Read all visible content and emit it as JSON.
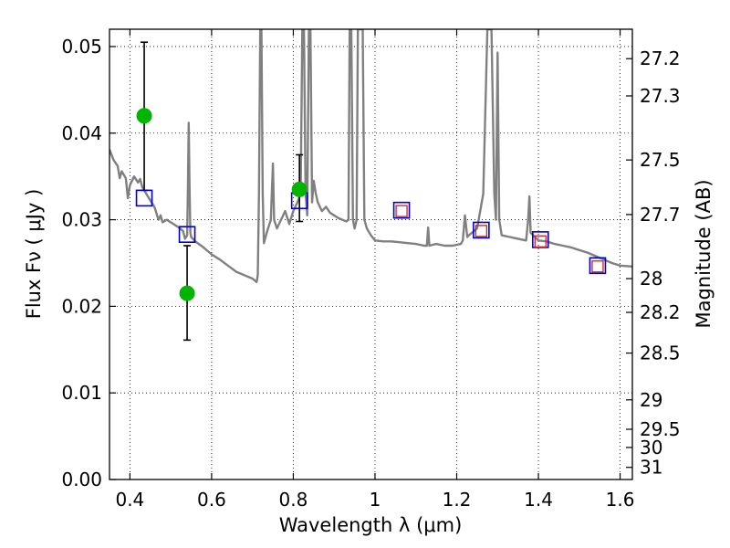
{
  "chart_data": {
    "type": "scatter",
    "xlabel": "Wavelength  λ (μm)",
    "ylabel": "Flux  Fν  ( μJy )",
    "y2label": "Magnitude (AB)",
    "xlim": [
      0.35,
      1.63
    ],
    "ylim": [
      0.0,
      0.052
    ],
    "grid": true,
    "x_ticks": [
      0.4,
      0.6,
      0.8,
      1.0,
      1.2,
      1.4,
      1.6
    ],
    "x_tick_labels": [
      "0.4",
      "0.6",
      "0.8",
      "1",
      "1.2",
      "1.4",
      "1.6"
    ],
    "y_ticks": [
      0.0,
      0.01,
      0.02,
      0.03,
      0.04,
      0.05
    ],
    "y_tick_labels": [
      "0.00",
      "0.01",
      "0.02",
      "0.03",
      "0.04",
      "0.05"
    ],
    "y2_ticks": [
      {
        "label": "27.2",
        "flux": 0.0486
      },
      {
        "label": "27.3",
        "flux": 0.0443
      },
      {
        "label": "27.5",
        "flux": 0.0369
      },
      {
        "label": "27.7",
        "flux": 0.0306
      },
      {
        "label": "28",
        "flux": 0.0232
      },
      {
        "label": "28.2",
        "flux": 0.0193
      },
      {
        "label": "28.5",
        "flux": 0.0146
      },
      {
        "label": "29",
        "flux": 0.0092
      },
      {
        "label": "29.5",
        "flux": 0.0058
      },
      {
        "label": "30",
        "flux": 0.0037
      },
      {
        "label": "31",
        "flux": 0.0014
      }
    ],
    "observed": {
      "color": "#00b400",
      "points": [
        {
          "x": 0.435,
          "y": 0.042,
          "err_low": 0.0086,
          "err_high": 0.0085
        },
        {
          "x": 0.54,
          "y": 0.0215,
          "err_low": 0.0054,
          "err_high": 0.0055
        },
        {
          "x": 0.815,
          "y": 0.0335,
          "err_low": 0.0037,
          "err_high": 0.004
        }
      ]
    },
    "model_photometry": {
      "color": "#0000cc",
      "points": [
        {
          "x": 0.435,
          "y": 0.0325
        },
        {
          "x": 0.54,
          "y": 0.0283
        },
        {
          "x": 0.815,
          "y": 0.0322
        },
        {
          "x": 1.065,
          "y": 0.0311
        },
        {
          "x": 1.26,
          "y": 0.0288
        },
        {
          "x": 1.405,
          "y": 0.0277
        },
        {
          "x": 1.545,
          "y": 0.0247
        }
      ]
    },
    "inner_photometry": {
      "color": "#cc2222",
      "points": [
        {
          "x": 1.065,
          "y": 0.031
        },
        {
          "x": 1.26,
          "y": 0.0287
        },
        {
          "x": 1.405,
          "y": 0.0275
        },
        {
          "x": 1.545,
          "y": 0.0246
        }
      ]
    },
    "spectrum": {
      "color": "#808080",
      "points": [
        [
          0.35,
          0.0381
        ],
        [
          0.36,
          0.0369
        ],
        [
          0.37,
          0.0362
        ],
        [
          0.375,
          0.0348
        ],
        [
          0.38,
          0.0356
        ],
        [
          0.39,
          0.0348
        ],
        [
          0.395,
          0.0325
        ],
        [
          0.4,
          0.034
        ],
        [
          0.41,
          0.035
        ],
        [
          0.42,
          0.0343
        ],
        [
          0.425,
          0.0347
        ],
        [
          0.43,
          0.0338
        ],
        [
          0.44,
          0.033
        ],
        [
          0.45,
          0.0322
        ],
        [
          0.46,
          0.0315
        ],
        [
          0.47,
          0.03
        ],
        [
          0.475,
          0.0305
        ],
        [
          0.48,
          0.0297
        ],
        [
          0.49,
          0.03
        ],
        [
          0.5,
          0.0297
        ],
        [
          0.51,
          0.0294
        ],
        [
          0.52,
          0.0291
        ],
        [
          0.53,
          0.0287
        ],
        [
          0.535,
          0.0278
        ],
        [
          0.54,
          0.0282
        ],
        [
          0.542,
          0.034
        ],
        [
          0.544,
          0.0412
        ],
        [
          0.546,
          0.034
        ],
        [
          0.548,
          0.0285
        ],
        [
          0.55,
          0.028
        ],
        [
          0.56,
          0.0275
        ],
        [
          0.58,
          0.0268
        ],
        [
          0.6,
          0.026
        ],
        [
          0.62,
          0.0254
        ],
        [
          0.64,
          0.0247
        ],
        [
          0.66,
          0.024
        ],
        [
          0.68,
          0.0236
        ],
        [
          0.7,
          0.0232
        ],
        [
          0.71,
          0.0228
        ],
        [
          0.713,
          0.0236
        ],
        [
          0.716,
          0.033
        ],
        [
          0.719,
          0.052
        ],
        [
          0.722,
          0.052
        ],
        [
          0.725,
          0.033
        ],
        [
          0.728,
          0.0273
        ],
        [
          0.735,
          0.0285
        ],
        [
          0.745,
          0.03
        ],
        [
          0.75,
          0.0365
        ],
        [
          0.753,
          0.03
        ],
        [
          0.76,
          0.029
        ],
        [
          0.77,
          0.03
        ],
        [
          0.78,
          0.031
        ],
        [
          0.79,
          0.0295
        ],
        [
          0.8,
          0.031
        ],
        [
          0.81,
          0.032
        ],
        [
          0.818,
          0.033
        ],
        [
          0.822,
          0.052
        ],
        [
          0.826,
          0.052
        ],
        [
          0.83,
          0.033
        ],
        [
          0.834,
          0.0305
        ],
        [
          0.838,
          0.052
        ],
        [
          0.842,
          0.052
        ],
        [
          0.846,
          0.032
        ],
        [
          0.85,
          0.0345
        ],
        [
          0.855,
          0.033
        ],
        [
          0.86,
          0.032
        ],
        [
          0.87,
          0.031
        ],
        [
          0.88,
          0.0315
        ],
        [
          0.89,
          0.0308
        ],
        [
          0.9,
          0.0305
        ],
        [
          0.91,
          0.0302
        ],
        [
          0.92,
          0.03
        ],
        [
          0.93,
          0.0298
        ],
        [
          0.935,
          0.03
        ],
        [
          0.938,
          0.052
        ],
        [
          0.942,
          0.052
        ],
        [
          0.946,
          0.03
        ],
        [
          0.95,
          0.029
        ],
        [
          0.955,
          0.03
        ],
        [
          0.958,
          0.052
        ],
        [
          0.962,
          0.052
        ],
        [
          0.966,
          0.052
        ],
        [
          0.97,
          0.052
        ],
        [
          0.974,
          0.03
        ],
        [
          0.98,
          0.029
        ],
        [
          0.99,
          0.0282
        ],
        [
          1.0,
          0.0276
        ],
        [
          1.02,
          0.0275
        ],
        [
          1.04,
          0.0275
        ],
        [
          1.06,
          0.0274
        ],
        [
          1.08,
          0.0273
        ],
        [
          1.1,
          0.0272
        ],
        [
          1.12,
          0.027
        ],
        [
          1.127,
          0.027
        ],
        [
          1.13,
          0.0291
        ],
        [
          1.133,
          0.027
        ],
        [
          1.15,
          0.0272
        ],
        [
          1.17,
          0.027
        ],
        [
          1.19,
          0.027
        ],
        [
          1.21,
          0.0272
        ],
        [
          1.215,
          0.0276
        ],
        [
          1.22,
          0.0305
        ],
        [
          1.226,
          0.028
        ],
        [
          1.23,
          0.0282
        ],
        [
          1.25,
          0.029
        ],
        [
          1.265,
          0.033
        ],
        [
          1.275,
          0.052
        ],
        [
          1.285,
          0.052
        ],
        [
          1.292,
          0.033
        ],
        [
          1.296,
          0.03
        ],
        [
          1.3,
          0.0493
        ],
        [
          1.304,
          0.03
        ],
        [
          1.31,
          0.0282
        ],
        [
          1.33,
          0.028
        ],
        [
          1.35,
          0.0278
        ],
        [
          1.37,
          0.0276
        ],
        [
          1.375,
          0.03
        ],
        [
          1.378,
          0.0327
        ],
        [
          1.381,
          0.0285
        ],
        [
          1.4,
          0.0276
        ],
        [
          1.42,
          0.0275
        ],
        [
          1.44,
          0.0272
        ],
        [
          1.46,
          0.027
        ],
        [
          1.48,
          0.0268
        ],
        [
          1.5,
          0.0265
        ],
        [
          1.52,
          0.0262
        ],
        [
          1.54,
          0.0258
        ],
        [
          1.56,
          0.0254
        ],
        [
          1.58,
          0.025
        ],
        [
          1.6,
          0.0247
        ],
        [
          1.63,
          0.0246
        ]
      ]
    }
  }
}
